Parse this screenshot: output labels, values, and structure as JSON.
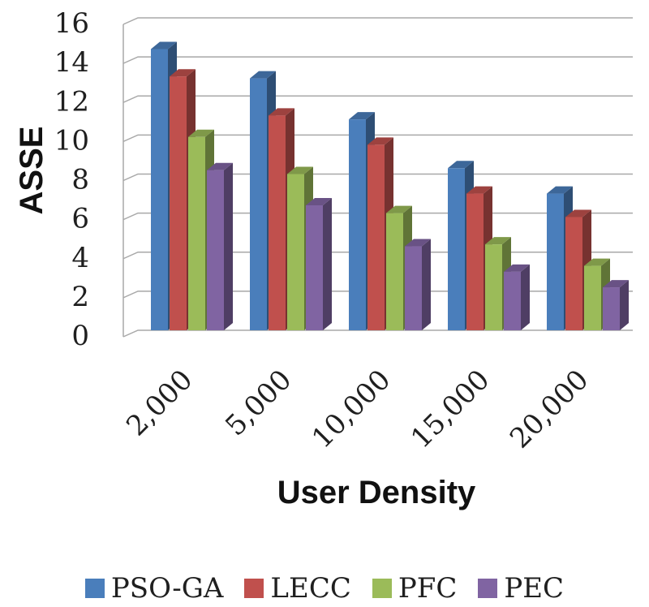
{
  "chart_data": {
    "type": "bar",
    "title": "",
    "xlabel": "User Density",
    "ylabel": "ASSE",
    "categories": [
      "2,000",
      "5,000",
      "10,000",
      "15,000",
      "20,000"
    ],
    "series": [
      {
        "name": "PSO-GA",
        "color": "#4A7EBB",
        "values": [
          14.4,
          12.9,
          10.8,
          8.3,
          7.0
        ]
      },
      {
        "name": "LECC",
        "color": "#C0504D",
        "values": [
          13.0,
          11.0,
          9.5,
          7.0,
          5.8
        ]
      },
      {
        "name": "PFC",
        "color": "#9BBB59",
        "values": [
          9.9,
          8.0,
          6.0,
          4.4,
          3.3
        ]
      },
      {
        "name": "PEC",
        "color": "#8064A2",
        "values": [
          8.2,
          6.4,
          4.3,
          3.0,
          2.2
        ]
      }
    ],
    "ylim": [
      0,
      16
    ],
    "yticks": [
      0,
      2,
      4,
      6,
      8,
      10,
      12,
      14,
      16
    ],
    "grid": true,
    "legend_position": "bottom"
  }
}
